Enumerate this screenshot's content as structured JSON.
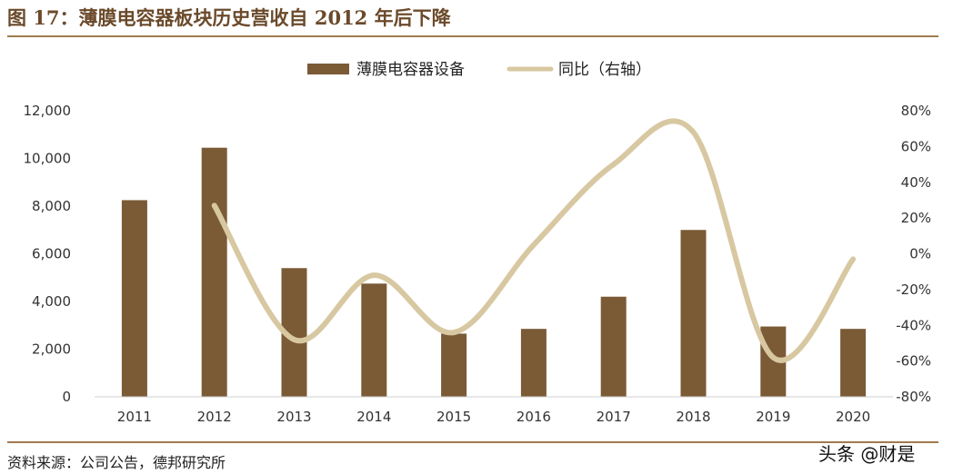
{
  "header": {
    "title": "图 17：薄膜电容器板块历史营收自 2012 年后下降"
  },
  "footer": {
    "source": "资料来源：公司公告，德邦研究所",
    "watermark": "头条 @财是"
  },
  "chart_data": {
    "type": "bar",
    "categories": [
      "2011",
      "2012",
      "2013",
      "2014",
      "2015",
      "2016",
      "2017",
      "2018",
      "2019",
      "2020"
    ],
    "series": [
      {
        "name": "薄膜电容器设备",
        "type": "bar",
        "axis": "left",
        "color": "#7b5a36",
        "values": [
          8250,
          10450,
          5400,
          4750,
          2650,
          2850,
          4200,
          7000,
          2950,
          2850
        ]
      },
      {
        "name": "同比（右轴）",
        "type": "line",
        "axis": "right",
        "color": "#d8c8a2",
        "values": [
          null,
          27,
          -48,
          -12,
          -44,
          5,
          50,
          68,
          -58,
          -3
        ]
      }
    ],
    "y_left": {
      "min": 0,
      "max": 12000,
      "ticks": [
        0,
        2000,
        4000,
        6000,
        8000,
        10000,
        12000
      ],
      "tick_labels": [
        "0",
        "2,000",
        "4,000",
        "6,000",
        "8,000",
        "10,000",
        "12,000"
      ]
    },
    "y_right": {
      "min": -80,
      "max": 80,
      "ticks": [
        -80,
        -60,
        -40,
        -20,
        0,
        20,
        40,
        60,
        80
      ],
      "tick_labels": [
        "-80%",
        "-60%",
        "-40%",
        "-20%",
        "0%",
        "20%",
        "40%",
        "60%",
        "80%"
      ]
    },
    "legend": {
      "position": "top-center"
    },
    "grid": false
  }
}
